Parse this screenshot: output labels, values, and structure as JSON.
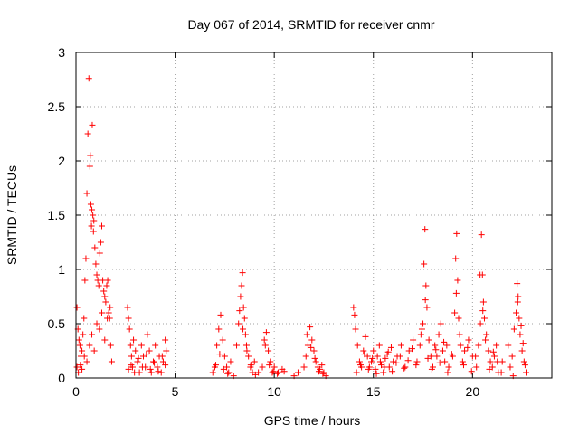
{
  "chart_data": {
    "type": "scatter",
    "title": "Day 067 of 2014, SRMTID for receiver cnmr",
    "xlabel": "GPS time / hours",
    "ylabel": "SRMTID / TECUs",
    "xlim": [
      0,
      24
    ],
    "ylim": [
      0,
      3
    ],
    "x_ticks": [
      0,
      5,
      10,
      15,
      20
    ],
    "x_tick_labels": [
      "0",
      "5",
      "10",
      "15",
      "20"
    ],
    "y_ticks": [
      0,
      0.5,
      1,
      1.5,
      2,
      2.5,
      3
    ],
    "y_tick_labels": [
      "0",
      "0.5",
      "1",
      "1.5",
      "2",
      "2.5",
      "3"
    ],
    "grid": true,
    "marker": "+",
    "color": "#ff0000",
    "series": [
      {
        "name": "SRMTID",
        "x": [
          0.05,
          0.1,
          0.15,
          0.2,
          0.25,
          0.3,
          0.35,
          0.4,
          0.45,
          0.5,
          0.55,
          0.6,
          0.65,
          0.7,
          0.72,
          0.75,
          0.78,
          0.8,
          0.82,
          0.85,
          0.88,
          0.9,
          0.95,
          1.0,
          1.05,
          1.1,
          1.15,
          1.2,
          1.25,
          1.3,
          1.35,
          1.4,
          1.45,
          1.5,
          1.55,
          1.6,
          1.65,
          1.7,
          1.75,
          1.8,
          0.05,
          0.12,
          0.22,
          0.3,
          0.42,
          0.55,
          0.68,
          0.8,
          0.92,
          1.05,
          1.18,
          1.3,
          1.45,
          1.58,
          1.72,
          2.6,
          2.65,
          2.7,
          2.75,
          2.8,
          2.85,
          2.9,
          3.0,
          3.1,
          3.2,
          3.3,
          3.4,
          3.5,
          3.6,
          3.7,
          3.8,
          3.9,
          4.0,
          4.1,
          4.2,
          4.3,
          4.4,
          4.5,
          4.55,
          2.65,
          2.78,
          2.95,
          3.15,
          3.35,
          3.55,
          3.75,
          3.95,
          4.15,
          4.35,
          4.5,
          6.9,
          7.0,
          7.1,
          7.2,
          7.3,
          7.4,
          7.5,
          7.6,
          7.7,
          7.8,
          7.95,
          8.1,
          8.2,
          8.3,
          8.35,
          8.4,
          8.45,
          8.5,
          8.55,
          8.6,
          8.7,
          8.8,
          8.9,
          9.0,
          9.2,
          9.4,
          9.5,
          9.6,
          9.7,
          9.8,
          9.9,
          10.0,
          10.2,
          10.4,
          10.5,
          7.05,
          7.25,
          7.45,
          7.65,
          8.25,
          8.42,
          8.62,
          8.82,
          9.05,
          9.55,
          9.75,
          9.95,
          10.15,
          11.0,
          11.2,
          11.5,
          11.6,
          11.7,
          11.8,
          11.9,
          12.0,
          12.1,
          12.2,
          12.3,
          12.4,
          12.5,
          12.6,
          11.65,
          11.85,
          12.05,
          12.25,
          12.45,
          14.0,
          14.05,
          14.1,
          14.2,
          14.3,
          14.4,
          14.5,
          14.6,
          14.7,
          14.8,
          14.9,
          15.0,
          15.1,
          15.2,
          15.3,
          15.4,
          15.5,
          15.6,
          15.7,
          15.8,
          15.9,
          16.0,
          16.2,
          16.4,
          16.6,
          16.8,
          17.0,
          17.2,
          17.4,
          17.5,
          17.55,
          17.6,
          17.65,
          17.7,
          17.8,
          17.9,
          18.0,
          18.1,
          18.2,
          18.3,
          18.4,
          18.5,
          18.6,
          18.7,
          18.8,
          19.0,
          19.1,
          19.15,
          19.2,
          19.25,
          19.3,
          19.4,
          19.5,
          19.6,
          19.8,
          20.0,
          20.2,
          20.3,
          20.4,
          20.45,
          20.5,
          20.55,
          20.6,
          20.7,
          20.8,
          20.9,
          21.0,
          21.1,
          21.2,
          21.3,
          21.5,
          21.8,
          21.9,
          22.0,
          22.1,
          22.2,
          22.25,
          22.3,
          22.35,
          22.4,
          22.5,
          22.6,
          22.7,
          14.15,
          14.35,
          14.55,
          14.75,
          14.95,
          15.15,
          15.35,
          15.55,
          15.75,
          15.95,
          16.15,
          16.35,
          16.55,
          16.75,
          16.95,
          17.15,
          17.35,
          17.45,
          17.62,
          17.75,
          17.95,
          18.15,
          18.35,
          18.55,
          18.75,
          18.95,
          19.18,
          19.35,
          19.55,
          19.75,
          19.95,
          20.15,
          20.38,
          20.52,
          20.65,
          20.85,
          21.05,
          21.25,
          21.45,
          22.05,
          22.28,
          22.45,
          22.55,
          22.65
        ],
        "y": [
          0.65,
          0.45,
          0.35,
          0.3,
          0.2,
          0.25,
          0.4,
          0.55,
          0.9,
          1.1,
          1.7,
          2.25,
          2.76,
          1.95,
          2.05,
          1.6,
          1.4,
          1.55,
          2.33,
          1.5,
          1.35,
          1.45,
          1.2,
          1.05,
          0.95,
          0.9,
          0.85,
          1.15,
          1.25,
          1.4,
          0.9,
          0.8,
          0.75,
          0.7,
          0.85,
          0.9,
          0.6,
          0.55,
          0.3,
          0.15,
          0.1,
          0.05,
          0.12,
          0.08,
          0.2,
          0.15,
          0.3,
          0.4,
          0.25,
          0.5,
          0.45,
          0.6,
          0.35,
          0.55,
          0.65,
          0.65,
          0.55,
          0.45,
          0.3,
          0.2,
          0.1,
          0.35,
          0.25,
          0.15,
          0.05,
          0.3,
          0.2,
          0.1,
          0.4,
          0.25,
          0.05,
          0.15,
          0.3,
          0.1,
          0.2,
          0.05,
          0.15,
          0.35,
          0.25,
          0.08,
          0.12,
          0.05,
          0.18,
          0.1,
          0.22,
          0.08,
          0.14,
          0.06,
          0.2,
          0.12,
          0.05,
          0.1,
          0.3,
          0.45,
          0.58,
          0.35,
          0.2,
          0.1,
          0.05,
          0.15,
          0.02,
          0.3,
          0.5,
          0.75,
          0.85,
          0.97,
          0.65,
          0.55,
          0.4,
          0.3,
          0.2,
          0.1,
          0.05,
          0.15,
          0.05,
          0.1,
          0.35,
          0.42,
          0.25,
          0.15,
          0.05,
          0.1,
          0.05,
          0.08,
          0.06,
          0.12,
          0.22,
          0.08,
          0.04,
          0.62,
          0.45,
          0.25,
          0.12,
          0.03,
          0.3,
          0.12,
          0.06,
          0.04,
          0.02,
          0.05,
          0.1,
          0.2,
          0.3,
          0.47,
          0.35,
          0.25,
          0.15,
          0.1,
          0.08,
          0.12,
          0.05,
          0.02,
          0.4,
          0.28,
          0.18,
          0.06,
          0.04,
          0.65,
          0.58,
          0.45,
          0.3,
          0.15,
          0.1,
          0.25,
          0.38,
          0.2,
          0.1,
          0.15,
          0.25,
          0.08,
          0.2,
          0.3,
          0.12,
          0.05,
          0.18,
          0.22,
          0.1,
          0.28,
          0.15,
          0.2,
          0.3,
          0.1,
          0.25,
          0.35,
          0.15,
          0.4,
          0.5,
          1.05,
          1.37,
          0.85,
          0.65,
          0.35,
          0.2,
          0.1,
          0.3,
          0.2,
          0.4,
          0.5,
          0.25,
          0.15,
          0.3,
          0.1,
          0.2,
          0.6,
          1.1,
          1.33,
          0.9,
          0.55,
          0.3,
          0.15,
          0.25,
          0.35,
          0.2,
          0.1,
          0.3,
          0.5,
          1.32,
          0.95,
          0.7,
          0.55,
          0.4,
          0.25,
          0.15,
          0.1,
          0.2,
          0.3,
          0.05,
          0.15,
          0.3,
          0.1,
          0.2,
          0.45,
          0.6,
          0.87,
          0.75,
          0.55,
          0.4,
          0.25,
          0.15,
          0.05,
          0.05,
          0.12,
          0.22,
          0.08,
          0.18,
          0.04,
          0.15,
          0.1,
          0.24,
          0.06,
          0.14,
          0.2,
          0.09,
          0.16,
          0.27,
          0.12,
          0.3,
          0.45,
          0.72,
          0.18,
          0.08,
          0.26,
          0.14,
          0.33,
          0.05,
          0.22,
          0.78,
          0.4,
          0.12,
          0.28,
          0.06,
          0.2,
          0.95,
          0.62,
          0.35,
          0.08,
          0.24,
          0.15,
          0.05,
          0.02,
          0.7,
          0.48,
          0.32,
          0.12
        ]
      }
    ]
  }
}
